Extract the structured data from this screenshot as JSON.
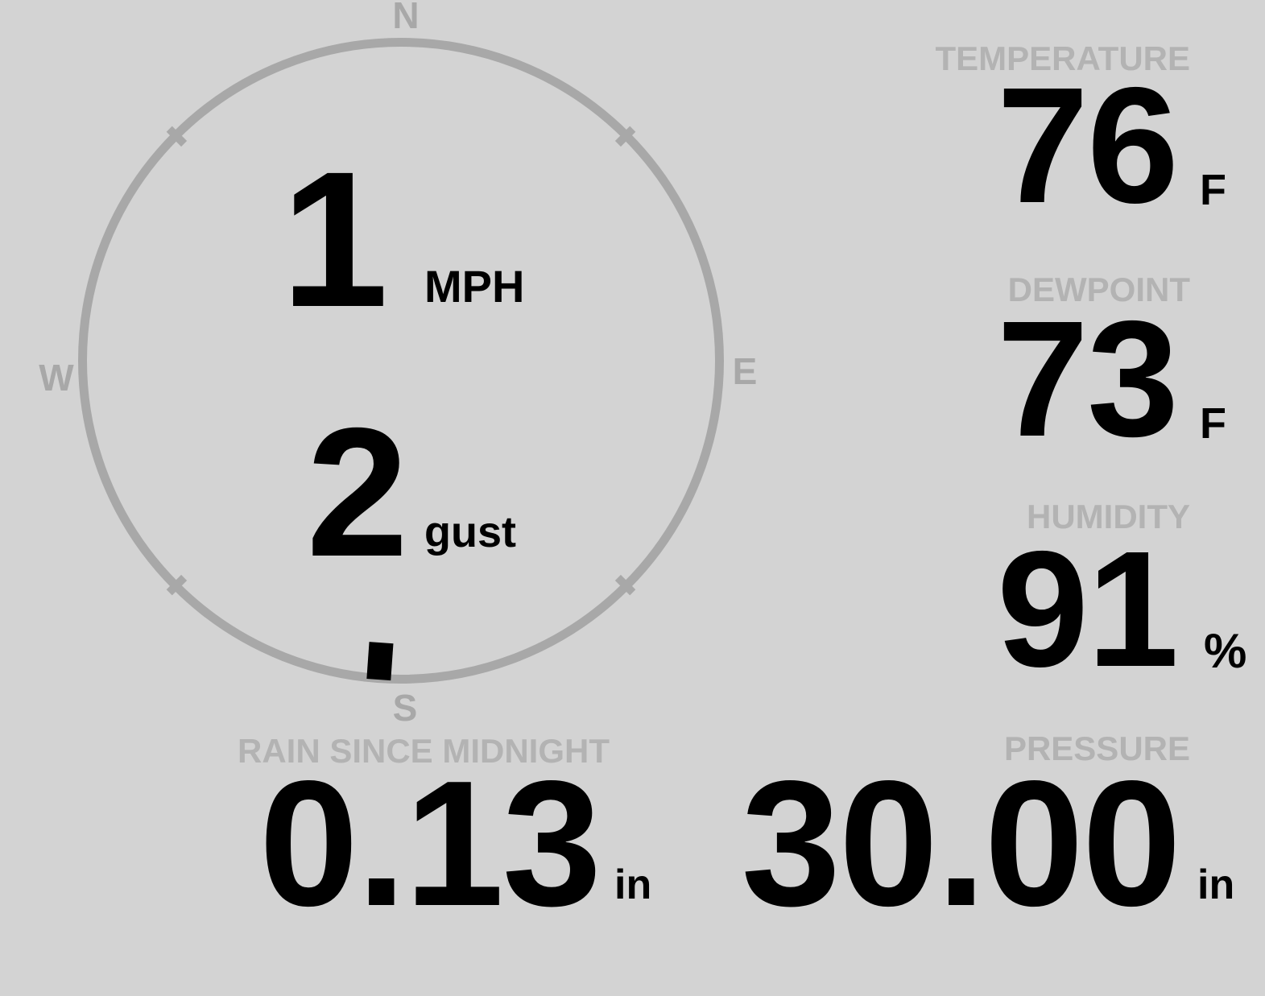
{
  "colors": {
    "background": "#d3d3d3",
    "dial": "#a8a8a8",
    "label": "#b3b3b3",
    "value": "#000000"
  },
  "compass": {
    "cardinals": {
      "north": "N",
      "east": "E",
      "south": "S",
      "west": "W"
    },
    "wind": {
      "speed": "1",
      "speed_unit": "MPH",
      "gust": "2",
      "gust_label": "gust",
      "direction_deg": 184
    }
  },
  "metrics": {
    "temperature": {
      "label": "TEMPERATURE",
      "value": "76",
      "unit": "F"
    },
    "dewpoint": {
      "label": "DEWPOINT",
      "value": "73",
      "unit": "F"
    },
    "humidity": {
      "label": "HUMIDITY",
      "value": "91",
      "unit": "%"
    },
    "rain": {
      "label": "RAIN SINCE MIDNIGHT",
      "value": "0.13",
      "unit": "in"
    },
    "pressure": {
      "label": "PRESSURE",
      "value": "30.00",
      "unit": "in"
    }
  }
}
